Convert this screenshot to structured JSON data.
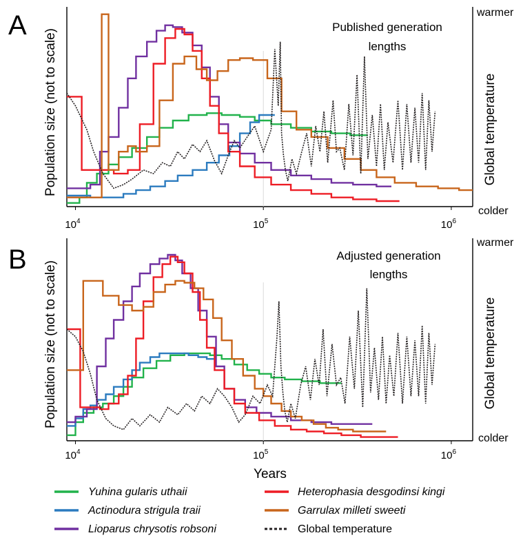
{
  "figure": {
    "shared": {
      "ylabel": "Population size (not to scale)",
      "right_label": "Global temperature",
      "warmer_label": "warmer",
      "colder_label": "colder",
      "xlabel": "Years",
      "x_tick_base": "10",
      "x_ticks": [
        {
          "value": 10000,
          "exp": "4"
        },
        {
          "value": 100000,
          "exp": "5"
        },
        {
          "value": 1000000,
          "exp": "6"
        }
      ]
    },
    "legend": [
      {
        "key": "yuhina",
        "label": "Yuhina gularis uthaii",
        "italic": true,
        "color": "#21b24b",
        "dashed": false
      },
      {
        "key": "heterophasia",
        "label": "Heterophasia desgodinsi kingi",
        "italic": true,
        "color": "#ed1c24",
        "dashed": false
      },
      {
        "key": "actinodura",
        "label": "Actinodura strigula traii",
        "italic": true,
        "color": "#2b7bbf",
        "dashed": false
      },
      {
        "key": "garrulax",
        "label": "Garrulax milleti sweeti",
        "italic": true,
        "color": "#c8651b",
        "dashed": false
      },
      {
        "key": "lioparus",
        "label": "Lioparus chrysotis robsoni",
        "italic": true,
        "color": "#7030a0",
        "dashed": false
      },
      {
        "key": "temperature",
        "label": "Global temperature",
        "italic": false,
        "color": "#231f20",
        "dashed": true
      }
    ]
  },
  "chart_data": [
    {
      "type": "line",
      "panel": "A",
      "annotation": [
        "Published generation",
        "lengths"
      ],
      "xscale": "log",
      "xlim": [
        9000,
        1300000
      ],
      "ylim": [
        0,
        1
      ],
      "series": [
        {
          "name": "Yuhina gularis uthaii",
          "color": "#21b24b",
          "step": true,
          "x": [
            9000,
            10500,
            11500,
            13000,
            15000,
            17000,
            20000,
            24000,
            28000,
            33000,
            40000,
            50000,
            60000,
            75000,
            90000,
            110000,
            140000,
            180000,
            230000,
            290000,
            360000
          ],
          "y": [
            0.02,
            0.05,
            0.13,
            0.18,
            0.23,
            0.27,
            0.32,
            0.38,
            0.43,
            0.47,
            0.5,
            0.51,
            0.5,
            0.49,
            0.47,
            0.45,
            0.43,
            0.41,
            0.4,
            0.39,
            0.39
          ]
        },
        {
          "name": "Actinodura strigula traii",
          "color": "#2b7bbf",
          "step": true,
          "x": [
            9000,
            12000,
            15000,
            18000,
            21000,
            25000,
            30000,
            35000,
            42000,
            50000,
            58000,
            66000,
            75000,
            85000,
            95000,
            105000,
            115000
          ],
          "y": [
            0.06,
            0.05,
            0.05,
            0.07,
            0.09,
            0.11,
            0.14,
            0.17,
            0.2,
            0.24,
            0.28,
            0.33,
            0.4,
            0.46,
            0.5,
            0.5,
            0.5
          ]
        },
        {
          "name": "Lioparus chrysotis robsoni",
          "color": "#7030a0",
          "step": true,
          "x": [
            9000,
            10500,
            12000,
            13500,
            15000,
            17000,
            19000,
            21000,
            24000,
            27000,
            30000,
            33000,
            37000,
            42000,
            47000,
            52000,
            58000,
            65000,
            75000,
            90000,
            110000,
            140000,
            180000,
            230000,
            300000,
            400000,
            480000
          ],
          "y": [
            0.1,
            0.1,
            0.12,
            0.3,
            0.38,
            0.54,
            0.7,
            0.82,
            0.9,
            0.96,
            0.99,
            0.98,
            0.95,
            0.88,
            0.76,
            0.6,
            0.45,
            0.35,
            0.29,
            0.24,
            0.2,
            0.17,
            0.15,
            0.13,
            0.12,
            0.11,
            0.11
          ]
        },
        {
          "name": "Heterophasia desgodinsi kingi",
          "color": "#ed1c24",
          "step": true,
          "x": [
            9000,
            10000,
            10800,
            13000,
            16000,
            19000,
            22000,
            26000,
            30000,
            34000,
            38000,
            42000,
            47000,
            52000,
            58000,
            65000,
            75000,
            90000,
            110000,
            140000,
            180000,
            230000,
            300000,
            400000,
            530000
          ],
          "y": [
            0.6,
            0.6,
            0.2,
            0.2,
            0.18,
            0.2,
            0.45,
            0.78,
            0.92,
            0.97,
            0.94,
            0.85,
            0.7,
            0.55,
            0.4,
            0.3,
            0.22,
            0.16,
            0.12,
            0.09,
            0.07,
            0.05,
            0.04,
            0.03,
            0.03
          ]
        },
        {
          "name": "Garrulax milleti sweeti",
          "color": "#c8651b",
          "step": true,
          "x": [
            9000,
            13300,
            13800,
            15000,
            17000,
            19000,
            21000,
            24000,
            28000,
            33000,
            38000,
            44000,
            50000,
            57000,
            65000,
            75000,
            88000,
            105000,
            125000,
            150000,
            180000,
            220000,
            270000,
            330000,
            400000,
            500000,
            650000,
            850000,
            1100000,
            1300000
          ],
          "y": [
            0.05,
            0.05,
            1.05,
            0.2,
            0.3,
            0.33,
            0.3,
            0.33,
            0.58,
            0.78,
            0.82,
            0.75,
            0.69,
            0.74,
            0.8,
            0.81,
            0.8,
            0.7,
            0.52,
            0.42,
            0.38,
            0.32,
            0.26,
            0.2,
            0.16,
            0.13,
            0.11,
            0.1,
            0.09,
            0.09
          ]
        },
        {
          "name": "Global temperature",
          "color": "#231f20",
          "dashed": true,
          "step": false,
          "x": [
            9000,
            10000,
            11500,
            12500,
            14000,
            16000,
            18000,
            20000,
            23000,
            26000,
            29000,
            32000,
            35000,
            38000,
            42000,
            46000,
            50000,
            55000,
            60000,
            65000,
            70000,
            75000,
            82000,
            90000,
            100000,
            110000,
            115000,
            120000,
            123000,
            125000,
            128000,
            131000,
            135000,
            142000,
            150000,
            160000,
            170000,
            180000,
            190000,
            200000,
            210000,
            220000,
            235000,
            245000,
            255000,
            270000,
            285000,
            300000,
            315000,
            330000,
            345000,
            360000,
            380000,
            400000,
            420000,
            440000,
            460000,
            490000,
            520000,
            550000,
            580000,
            610000,
            640000,
            670000,
            700000,
            730000,
            760000,
            790000,
            820000
          ],
          "y": [
            0.62,
            0.55,
            0.42,
            0.3,
            0.18,
            0.1,
            0.12,
            0.15,
            0.2,
            0.18,
            0.24,
            0.22,
            0.3,
            0.26,
            0.34,
            0.3,
            0.36,
            0.25,
            0.18,
            0.28,
            0.36,
            0.32,
            0.38,
            0.44,
            0.3,
            0.42,
            0.86,
            0.55,
            0.9,
            0.4,
            0.28,
            0.2,
            0.14,
            0.26,
            0.18,
            0.3,
            0.4,
            0.22,
            0.44,
            0.3,
            0.52,
            0.24,
            0.58,
            0.3,
            0.32,
            0.2,
            0.56,
            0.28,
            0.72,
            0.18,
            0.82,
            0.26,
            0.5,
            0.22,
            0.56,
            0.2,
            0.46,
            0.24,
            0.58,
            0.2,
            0.56,
            0.24,
            0.54,
            0.24,
            0.62,
            0.2,
            0.58,
            0.3,
            0.52
          ]
        }
      ]
    },
    {
      "type": "line",
      "panel": "B",
      "annotation": [
        "Adjusted generation",
        "lengths"
      ],
      "xscale": "log",
      "xlim": [
        9000,
        1300000
      ],
      "ylim": [
        0,
        1
      ],
      "series": [
        {
          "name": "Yuhina gularis uthaii",
          "color": "#21b24b",
          "step": true,
          "x": [
            9000,
            10000,
            11000,
            12500,
            14000,
            16000,
            18000,
            20000,
            23000,
            27000,
            32000,
            38000,
            45000,
            52000,
            60000,
            70000,
            82000,
            95000,
            110000,
            130000,
            160000,
            200000,
            260000
          ],
          "y": [
            0.03,
            0.1,
            0.15,
            0.18,
            0.2,
            0.24,
            0.29,
            0.34,
            0.39,
            0.43,
            0.46,
            0.47,
            0.47,
            0.46,
            0.44,
            0.41,
            0.38,
            0.36,
            0.34,
            0.33,
            0.32,
            0.31,
            0.31
          ]
        },
        {
          "name": "Actinodura strigula traii",
          "color": "#2b7bbf",
          "step": true,
          "x": [
            9000,
            10000,
            11000,
            12000,
            13000,
            14500,
            16000,
            18000,
            20000,
            22000,
            25000,
            28000,
            32000,
            36000,
            40000,
            45000,
            50000,
            56000
          ],
          "y": [
            0.08,
            0.12,
            0.17,
            0.19,
            0.22,
            0.25,
            0.29,
            0.33,
            0.38,
            0.42,
            0.45,
            0.47,
            0.47,
            0.47,
            0.46,
            0.45,
            0.44,
            0.44
          ]
        },
        {
          "name": "Lioparus chrysotis robsoni",
          "color": "#7030a0",
          "step": true,
          "x": [
            9000,
            10000,
            11500,
            13000,
            14500,
            16000,
            18000,
            20000,
            22000,
            25000,
            28000,
            31000,
            34000,
            37000,
            41000,
            45000,
            50000,
            56000,
            62000,
            70000,
            80000,
            92000,
            110000,
            140000,
            180000,
            230000,
            300000,
            380000
          ],
          "y": [
            0.1,
            0.13,
            0.17,
            0.4,
            0.55,
            0.65,
            0.75,
            0.83,
            0.9,
            0.95,
            0.98,
            1.0,
            0.97,
            0.9,
            0.82,
            0.7,
            0.56,
            0.4,
            0.28,
            0.22,
            0.18,
            0.15,
            0.13,
            0.11,
            0.1,
            0.09,
            0.09,
            0.09
          ]
        },
        {
          "name": "Heterophasia desgodinsi kingi",
          "color": "#ed1c24",
          "step": true,
          "x": [
            9000,
            9800,
            10600,
            12000,
            13500,
            15000,
            17000,
            19000,
            21000,
            23000,
            26000,
            29000,
            32000,
            35000,
            38000,
            42000,
            46000,
            50000,
            55000,
            62000,
            70000,
            80000,
            95000,
            115000,
            140000,
            170000,
            210000,
            260000,
            330000,
            420000,
            520000
          ],
          "y": [
            0.6,
            0.6,
            0.18,
            0.18,
            0.17,
            0.2,
            0.25,
            0.35,
            0.55,
            0.75,
            0.88,
            0.95,
            0.99,
            0.96,
            0.9,
            0.8,
            0.65,
            0.5,
            0.38,
            0.28,
            0.2,
            0.15,
            0.11,
            0.08,
            0.06,
            0.05,
            0.04,
            0.03,
            0.02,
            0.02,
            0.02
          ]
        },
        {
          "name": "Garrulax milleti sweeti",
          "color": "#c8651b",
          "step": true,
          "x": [
            9000,
            10400,
            11000,
            14000,
            17000,
            20000,
            23000,
            26000,
            30000,
            34000,
            38000,
            43000,
            48000,
            54000,
            60000,
            68000,
            78000,
            90000,
            100000,
            110000,
            125000,
            140000,
            160000,
            185000,
            215000,
            250000,
            300000,
            360000,
            450000
          ],
          "y": [
            0.38,
            0.38,
            0.86,
            0.78,
            0.73,
            0.7,
            0.72,
            0.8,
            0.84,
            0.86,
            0.85,
            0.82,
            0.76,
            0.66,
            0.54,
            0.44,
            0.35,
            0.28,
            0.24,
            0.2,
            0.16,
            0.13,
            0.11,
            0.09,
            0.07,
            0.06,
            0.05,
            0.05,
            0.05
          ]
        },
        {
          "name": "Global temperature",
          "color": "#231f20",
          "dashed": true,
          "step": false,
          "x": [
            9000,
            10000,
            11000,
            12000,
            13000,
            14500,
            16000,
            18000,
            20000,
            22000,
            25000,
            28000,
            31000,
            35000,
            39000,
            43000,
            47000,
            52000,
            57000,
            62000,
            68000,
            74000,
            80000,
            88000,
            96000,
            105000,
            112000,
            118000,
            121000,
            124000,
            127000,
            130000,
            134000,
            140000,
            148000,
            158000,
            168000,
            178000,
            188000,
            198000,
            208000,
            218000,
            232000,
            245000,
            258000,
            272000,
            288000,
            305000,
            320000,
            338000,
            355000,
            372000,
            390000,
            410000,
            430000,
            450000,
            470000,
            495000,
            520000,
            550000,
            580000,
            610000,
            640000,
            670000,
            700000,
            730000,
            760000,
            790000,
            820000
          ],
          "y": [
            0.6,
            0.56,
            0.48,
            0.36,
            0.22,
            0.12,
            0.08,
            0.06,
            0.12,
            0.08,
            0.14,
            0.1,
            0.18,
            0.14,
            0.2,
            0.16,
            0.24,
            0.2,
            0.28,
            0.24,
            0.18,
            0.1,
            0.14,
            0.24,
            0.2,
            0.3,
            0.24,
            0.55,
            0.75,
            0.4,
            0.26,
            0.16,
            0.1,
            0.2,
            0.12,
            0.3,
            0.4,
            0.22,
            0.44,
            0.3,
            0.6,
            0.24,
            0.52,
            0.3,
            0.34,
            0.2,
            0.56,
            0.28,
            0.7,
            0.18,
            0.82,
            0.26,
            0.5,
            0.22,
            0.56,
            0.2,
            0.46,
            0.24,
            0.58,
            0.2,
            0.56,
            0.24,
            0.54,
            0.24,
            0.62,
            0.2,
            0.58,
            0.3,
            0.52
          ]
        }
      ]
    }
  ]
}
